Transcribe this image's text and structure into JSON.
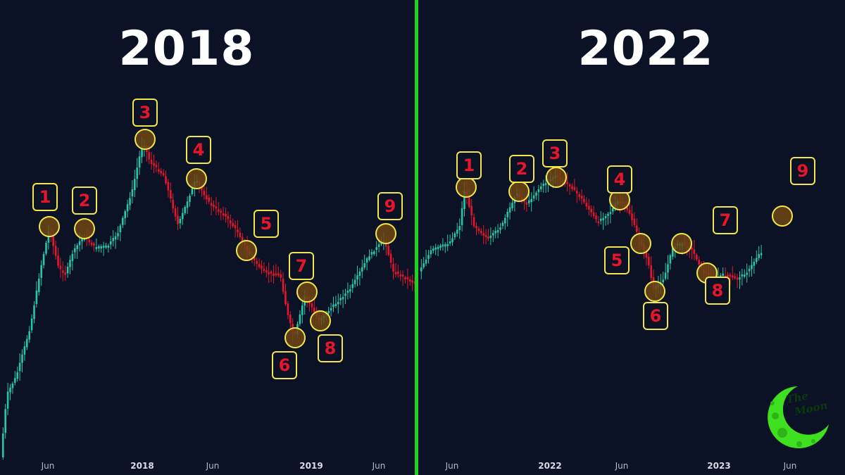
{
  "titles": {
    "left": "2018",
    "right": "2022"
  },
  "colors": {
    "up": "#26c6a6",
    "down": "#e5162a",
    "divider": "#1fd120",
    "marker": "#f2e64a",
    "background": "#0b1226"
  },
  "logo": {
    "text_line1": "The",
    "text_line2": "Moon"
  },
  "chart_data": [
    {
      "type": "candlestick",
      "panel": "left",
      "title": "2018",
      "x_ticks": [
        "Jun",
        "2018",
        "Jun",
        "2019",
        "Jun"
      ],
      "year_ticks": [
        "2018",
        "2019"
      ],
      "annotations": [
        "1",
        "2",
        "3",
        "4",
        "5",
        "6",
        "7",
        "8",
        "9"
      ]
    },
    {
      "type": "candlestick",
      "panel": "right",
      "title": "2022",
      "x_ticks": [
        "Jun",
        "2022",
        "Jun",
        "2023",
        "Jun"
      ],
      "year_ticks": [
        "2022",
        "2023"
      ],
      "annotations": [
        "1",
        "2",
        "3",
        "4",
        "5",
        "6",
        "7",
        "8",
        "9"
      ]
    }
  ]
}
